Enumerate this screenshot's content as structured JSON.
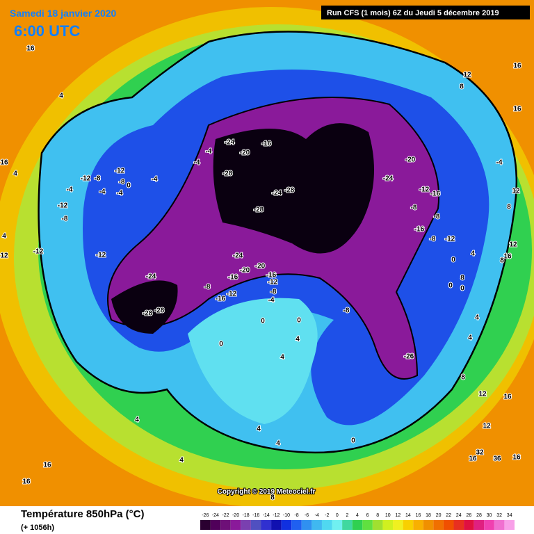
{
  "header": {
    "date": "Samedi 18 janvier 2020",
    "time": "6:00 UTC",
    "run": "Run CFS (1 mois) 6Z du Jeudi 5 décembre 2019"
  },
  "copyright": "Copyright © 2019 Meteociel.fr",
  "footer": {
    "title": "Température 850hPa (°C)",
    "lead": "(+ 1056h)"
  },
  "colorbar": {
    "ticks": [
      -26,
      -24,
      -22,
      -20,
      -18,
      -16,
      -14,
      -12,
      -10,
      -8,
      -6,
      -4,
      -2,
      0,
      2,
      4,
      6,
      8,
      10,
      12,
      14,
      16,
      18,
      20,
      22,
      24,
      26,
      28,
      30,
      32,
      34
    ],
    "colors": [
      "#2a0030",
      "#50005a",
      "#6e1078",
      "#8a1a9a",
      "#7a40b0",
      "#5050c0",
      "#3030d0",
      "#1010b0",
      "#1030e0",
      "#2060f0",
      "#3090f0",
      "#40b8f0",
      "#50d8f0",
      "#70f0f0",
      "#40d8a0",
      "#30d050",
      "#60e040",
      "#a0e030",
      "#d0f020",
      "#f0f020",
      "#f8d000",
      "#f8b000",
      "#f09000",
      "#f07000",
      "#f05000",
      "#e83020",
      "#e01040",
      "#e02080",
      "#f040b0",
      "#f070d0",
      "#f8a0e8"
    ]
  },
  "map_labels": [
    "16",
    "4",
    "16",
    "4",
    "4",
    "12",
    "-12",
    "-12",
    "-8",
    "-12",
    "-8",
    "0",
    "-4",
    "-4",
    "-4",
    "-4",
    "-12",
    "-8",
    "-12",
    "-4",
    "-4",
    "-24",
    "-20",
    "-16",
    "-28",
    "-24",
    "-28",
    "-28",
    "-24",
    "-20",
    "-20",
    "-16",
    "-16",
    "-12",
    "-8",
    "-16",
    "-12",
    "-8",
    "-4",
    "-24",
    "-28",
    "-28",
    "-20",
    "-24",
    "-12",
    "-16",
    "-8",
    "-8",
    "-16",
    "-8",
    "-12",
    "-4",
    "-8",
    "-26",
    "0",
    "0",
    "4",
    "0",
    "4",
    "0",
    "4",
    "4",
    "4",
    "4",
    "16",
    "16",
    "8",
    "8",
    "12",
    "16",
    "16",
    "12",
    "8",
    "12",
    "16",
    "8",
    "0",
    "4",
    "8",
    "0",
    "0",
    "4",
    "4",
    "8",
    "12",
    "16",
    "12",
    "16",
    "32",
    "36",
    "16"
  ]
}
